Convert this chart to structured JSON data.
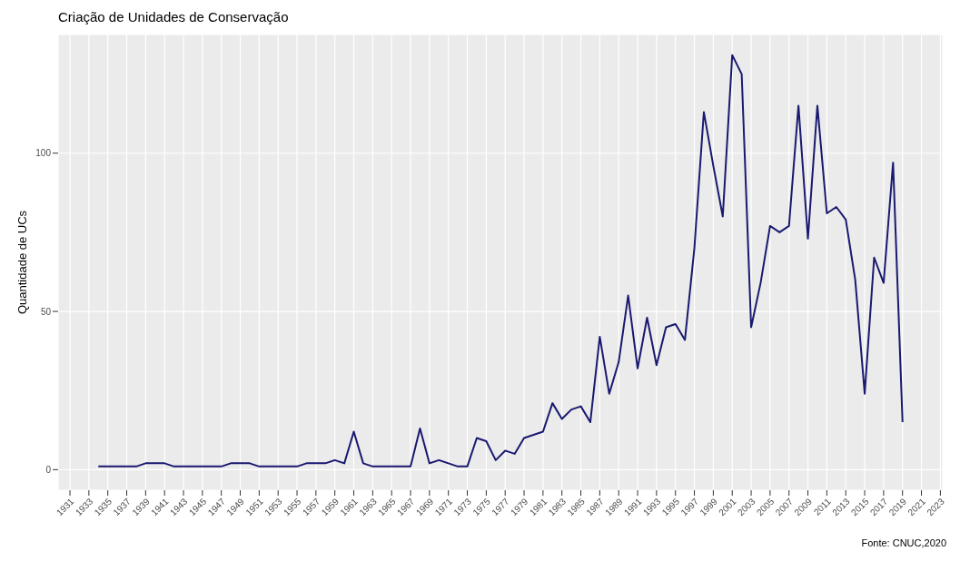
{
  "chart_data": {
    "type": "line",
    "title": "Criação de Unidades de Conservação",
    "ylabel": "Quantidade de UCs",
    "annotations": [
      "Fonte: CNUC,2020"
    ],
    "x": [
      1934,
      1935,
      1936,
      1937,
      1938,
      1939,
      1940,
      1941,
      1942,
      1943,
      1944,
      1945,
      1946,
      1947,
      1948,
      1949,
      1950,
      1951,
      1952,
      1953,
      1954,
      1955,
      1956,
      1957,
      1958,
      1959,
      1960,
      1961,
      1962,
      1963,
      1964,
      1965,
      1966,
      1967,
      1968,
      1969,
      1970,
      1971,
      1972,
      1973,
      1974,
      1975,
      1976,
      1977,
      1978,
      1979,
      1980,
      1981,
      1982,
      1983,
      1984,
      1985,
      1986,
      1987,
      1988,
      1989,
      1990,
      1991,
      1992,
      1993,
      1994,
      1995,
      1996,
      1997,
      1998,
      1999,
      2000,
      2001,
      2002,
      2003,
      2004,
      2005,
      2006,
      2007,
      2008,
      2009,
      2010,
      2011,
      2012,
      2013,
      2014,
      2015,
      2016,
      2017,
      2018,
      2019
    ],
    "series": [
      {
        "color": "#191970",
        "values": [
          1,
          1,
          1,
          1,
          1,
          2,
          2,
          2,
          1,
          1,
          1,
          1,
          1,
          1,
          2,
          2,
          2,
          1,
          1,
          1,
          1,
          1,
          2,
          2,
          2,
          3,
          2,
          12,
          2,
          1,
          1,
          1,
          1,
          1,
          13,
          2,
          3,
          2,
          1,
          1,
          10,
          9,
          3,
          6,
          5,
          10,
          11,
          12,
          21,
          16,
          19,
          20,
          15,
          42,
          24,
          34,
          55,
          32,
          48,
          33,
          45,
          46,
          41,
          70,
          113,
          96,
          80,
          131,
          125,
          45,
          59,
          77,
          75,
          77,
          115,
          73,
          115,
          81,
          83,
          79,
          60,
          24,
          67,
          59,
          97,
          15
        ]
      }
    ],
    "xlim": [
      1929.75,
      2023.25
    ],
    "xticks": [
      1931,
      1933,
      1935,
      1937,
      1939,
      1941,
      1943,
      1945,
      1947,
      1949,
      1951,
      1953,
      1955,
      1957,
      1959,
      1961,
      1963,
      1965,
      1967,
      1969,
      1971,
      1973,
      1975,
      1977,
      1979,
      1981,
      1983,
      1985,
      1987,
      1989,
      1991,
      1993,
      1995,
      1997,
      1999,
      2001,
      2003,
      2005,
      2007,
      2009,
      2011,
      2013,
      2015,
      2017,
      2019,
      2021,
      2023
    ],
    "ylim": [
      -6.5,
      137.5
    ],
    "yticks": [
      0,
      50,
      100
    ],
    "grid": true,
    "marker": "none",
    "line_style": "solid"
  }
}
